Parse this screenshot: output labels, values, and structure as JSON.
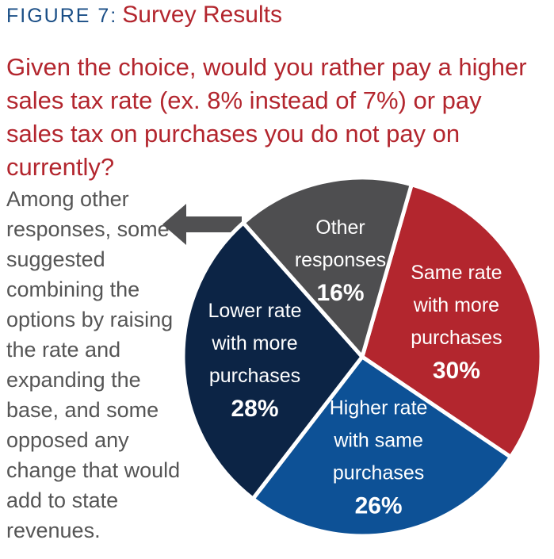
{
  "figure": {
    "label": "FIGURE 7:",
    "title": "Survey Results",
    "question": "Given the choice, would you rather pay a higher sales tax rate (ex. 8% instead of 7%) or pay sales tax on purchases you do not pay on currently?"
  },
  "side_note": "Among other responses, some suggested combining the options by raising the rate and expanding the base, and some opposed any change that would add to state revenues.",
  "chart_data": {
    "type": "pie",
    "title": "Survey Results",
    "slices": [
      {
        "label_lines": [
          "Same rate",
          "with more",
          "purchases"
        ],
        "value": 30,
        "value_label": "30%",
        "color": "#b3262e"
      },
      {
        "label_lines": [
          "Higher rate",
          "with same",
          "purchases"
        ],
        "value": 26,
        "value_label": "26%",
        "color": "#0d5196"
      },
      {
        "label_lines": [
          "Lower rate",
          "with more",
          "purchases"
        ],
        "value": 28,
        "value_label": "28%",
        "color": "#0c2445"
      },
      {
        "label_lines": [
          "Other",
          "responses"
        ],
        "value": 16,
        "value_label": "16%",
        "color": "#4e4e50"
      }
    ]
  }
}
